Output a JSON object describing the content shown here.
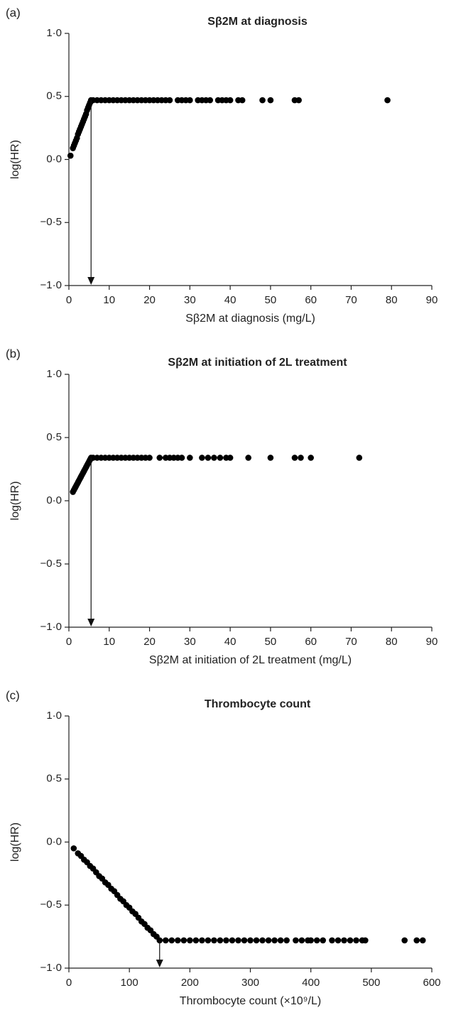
{
  "chart_data": [
    {
      "type": "scatter",
      "panel": "(a)",
      "title": "Sβ2M at diagnosis",
      "xlabel": "Sβ2M at diagnosis (mg/L)",
      "ylabel": "log(HR)",
      "color": "#000000",
      "x": [
        0.4,
        1,
        1.25,
        1.5,
        1.75,
        2,
        2.25,
        2.5,
        2.75,
        3,
        3.25,
        3.5,
        3.75,
        4,
        4.25,
        4.5,
        4.75,
        5,
        5.25,
        5.5,
        6,
        7,
        8,
        9,
        10,
        11,
        12,
        13,
        14,
        15,
        16,
        17,
        18,
        19,
        20,
        21,
        22,
        23,
        24,
        25,
        27,
        28,
        29,
        30,
        32,
        33,
        34,
        35,
        37,
        38,
        39,
        40,
        42,
        43,
        48,
        50,
        56,
        57,
        79
      ],
      "y": [
        0.03,
        0.09,
        0.11,
        0.13,
        0.15,
        0.17,
        0.2,
        0.22,
        0.24,
        0.26,
        0.28,
        0.3,
        0.32,
        0.34,
        0.36,
        0.39,
        0.41,
        0.43,
        0.45,
        0.47,
        0.47,
        0.47,
        0.47,
        0.47,
        0.47,
        0.47,
        0.47,
        0.47,
        0.47,
        0.47,
        0.47,
        0.47,
        0.47,
        0.47,
        0.47,
        0.47,
        0.47,
        0.47,
        0.47,
        0.47,
        0.47,
        0.47,
        0.47,
        0.47,
        0.47,
        0.47,
        0.47,
        0.47,
        0.47,
        0.47,
        0.47,
        0.47,
        0.47,
        0.47,
        0.47,
        0.47,
        0.47,
        0.47,
        0.47
      ],
      "cutoff": {
        "x": 5.5,
        "y": 0.47
      },
      "xlim": [
        0,
        90
      ],
      "xticks": [
        0,
        10,
        20,
        30,
        40,
        50,
        60,
        70,
        80,
        90
      ],
      "ylim": [
        -1,
        1
      ],
      "yticks": [
        {
          "value": 1,
          "label": "1·0"
        },
        {
          "value": 0.5,
          "label": "0·5"
        },
        {
          "value": 0,
          "label": "0·0"
        },
        {
          "value": -0.5,
          "label": "−0·5"
        },
        {
          "value": -1,
          "label": "−1·0"
        }
      ]
    },
    {
      "type": "scatter",
      "panel": "(b)",
      "title": "Sβ2M at initiation of 2L treatment",
      "xlabel": "Sβ2M at initiation of 2L treatment (mg/L)",
      "ylabel": "log(HR)",
      "color": "#000000",
      "x": [
        1,
        1.25,
        1.5,
        1.75,
        2,
        2.25,
        2.5,
        2.75,
        3,
        3.25,
        3.5,
        3.75,
        4,
        4.25,
        4.5,
        4.75,
        5,
        5.25,
        5.5,
        6,
        7,
        8,
        9,
        10,
        11,
        12,
        13,
        14,
        15,
        16,
        17,
        18,
        19,
        20,
        22.5,
        24,
        25,
        26,
        27,
        28,
        30,
        33,
        34.5,
        36,
        37.5,
        39,
        40,
        44.5,
        50,
        56,
        57.5,
        60,
        72
      ],
      "y": [
        0.07,
        0.085,
        0.1,
        0.115,
        0.13,
        0.145,
        0.16,
        0.175,
        0.19,
        0.205,
        0.22,
        0.235,
        0.25,
        0.265,
        0.28,
        0.295,
        0.31,
        0.325,
        0.34,
        0.34,
        0.34,
        0.34,
        0.34,
        0.34,
        0.34,
        0.34,
        0.34,
        0.34,
        0.34,
        0.34,
        0.34,
        0.34,
        0.34,
        0.34,
        0.34,
        0.34,
        0.34,
        0.34,
        0.34,
        0.34,
        0.34,
        0.34,
        0.34,
        0.34,
        0.34,
        0.34,
        0.34,
        0.34,
        0.34,
        0.34,
        0.34,
        0.34,
        0.34
      ],
      "cutoff": {
        "x": 5.5,
        "y": 0.34
      },
      "xlim": [
        0,
        90
      ],
      "xticks": [
        0,
        10,
        20,
        30,
        40,
        50,
        60,
        70,
        80,
        90
      ],
      "ylim": [
        -1,
        1
      ],
      "yticks": [
        {
          "value": 1,
          "label": "1·0"
        },
        {
          "value": 0.5,
          "label": "0·5"
        },
        {
          "value": 0,
          "label": "0·0"
        },
        {
          "value": -0.5,
          "label": "−0·5"
        },
        {
          "value": -1,
          "label": "−1·0"
        }
      ]
    },
    {
      "type": "scatter",
      "panel": "(c)",
      "title": "Thrombocyte count",
      "xlabel": "Thrombocyte count (×10⁹/L)",
      "ylabel": "log(HR)",
      "color": "#000000",
      "x": [
        8,
        15,
        20,
        25,
        30,
        35,
        40,
        45,
        50,
        55,
        60,
        65,
        70,
        75,
        80,
        85,
        90,
        95,
        100,
        105,
        110,
        115,
        120,
        125,
        130,
        135,
        140,
        145,
        150,
        160,
        170,
        180,
        190,
        200,
        210,
        220,
        230,
        240,
        250,
        260,
        270,
        280,
        290,
        300,
        310,
        320,
        330,
        340,
        350,
        360,
        375,
        385,
        395,
        400,
        410,
        420,
        435,
        445,
        455,
        465,
        475,
        485,
        490,
        555,
        575,
        585
      ],
      "y": [
        -0.05,
        -0.09,
        -0.11,
        -0.14,
        -0.16,
        -0.19,
        -0.21,
        -0.24,
        -0.27,
        -0.29,
        -0.32,
        -0.34,
        -0.37,
        -0.39,
        -0.42,
        -0.45,
        -0.47,
        -0.5,
        -0.52,
        -0.55,
        -0.57,
        -0.6,
        -0.63,
        -0.65,
        -0.68,
        -0.7,
        -0.73,
        -0.75,
        -0.78,
        -0.78,
        -0.78,
        -0.78,
        -0.78,
        -0.78,
        -0.78,
        -0.78,
        -0.78,
        -0.78,
        -0.78,
        -0.78,
        -0.78,
        -0.78,
        -0.78,
        -0.78,
        -0.78,
        -0.78,
        -0.78,
        -0.78,
        -0.78,
        -0.78,
        -0.78,
        -0.78,
        -0.78,
        -0.78,
        -0.78,
        -0.78,
        -0.78,
        -0.78,
        -0.78,
        -0.78,
        -0.78,
        -0.78,
        -0.78,
        -0.78,
        -0.78,
        -0.78
      ],
      "cutoff": {
        "x": 150,
        "y": -0.78
      },
      "xlim": [
        0,
        600
      ],
      "xticks": [
        0,
        100,
        200,
        300,
        400,
        500,
        600
      ],
      "ylim": [
        -1,
        1
      ],
      "yticks": [
        {
          "value": 1,
          "label": "1·0"
        },
        {
          "value": 0.5,
          "label": "0·5"
        },
        {
          "value": 0,
          "label": "0·0"
        },
        {
          "value": -0.5,
          "label": "−0·5"
        },
        {
          "value": -1,
          "label": "−1·0"
        }
      ]
    }
  ]
}
